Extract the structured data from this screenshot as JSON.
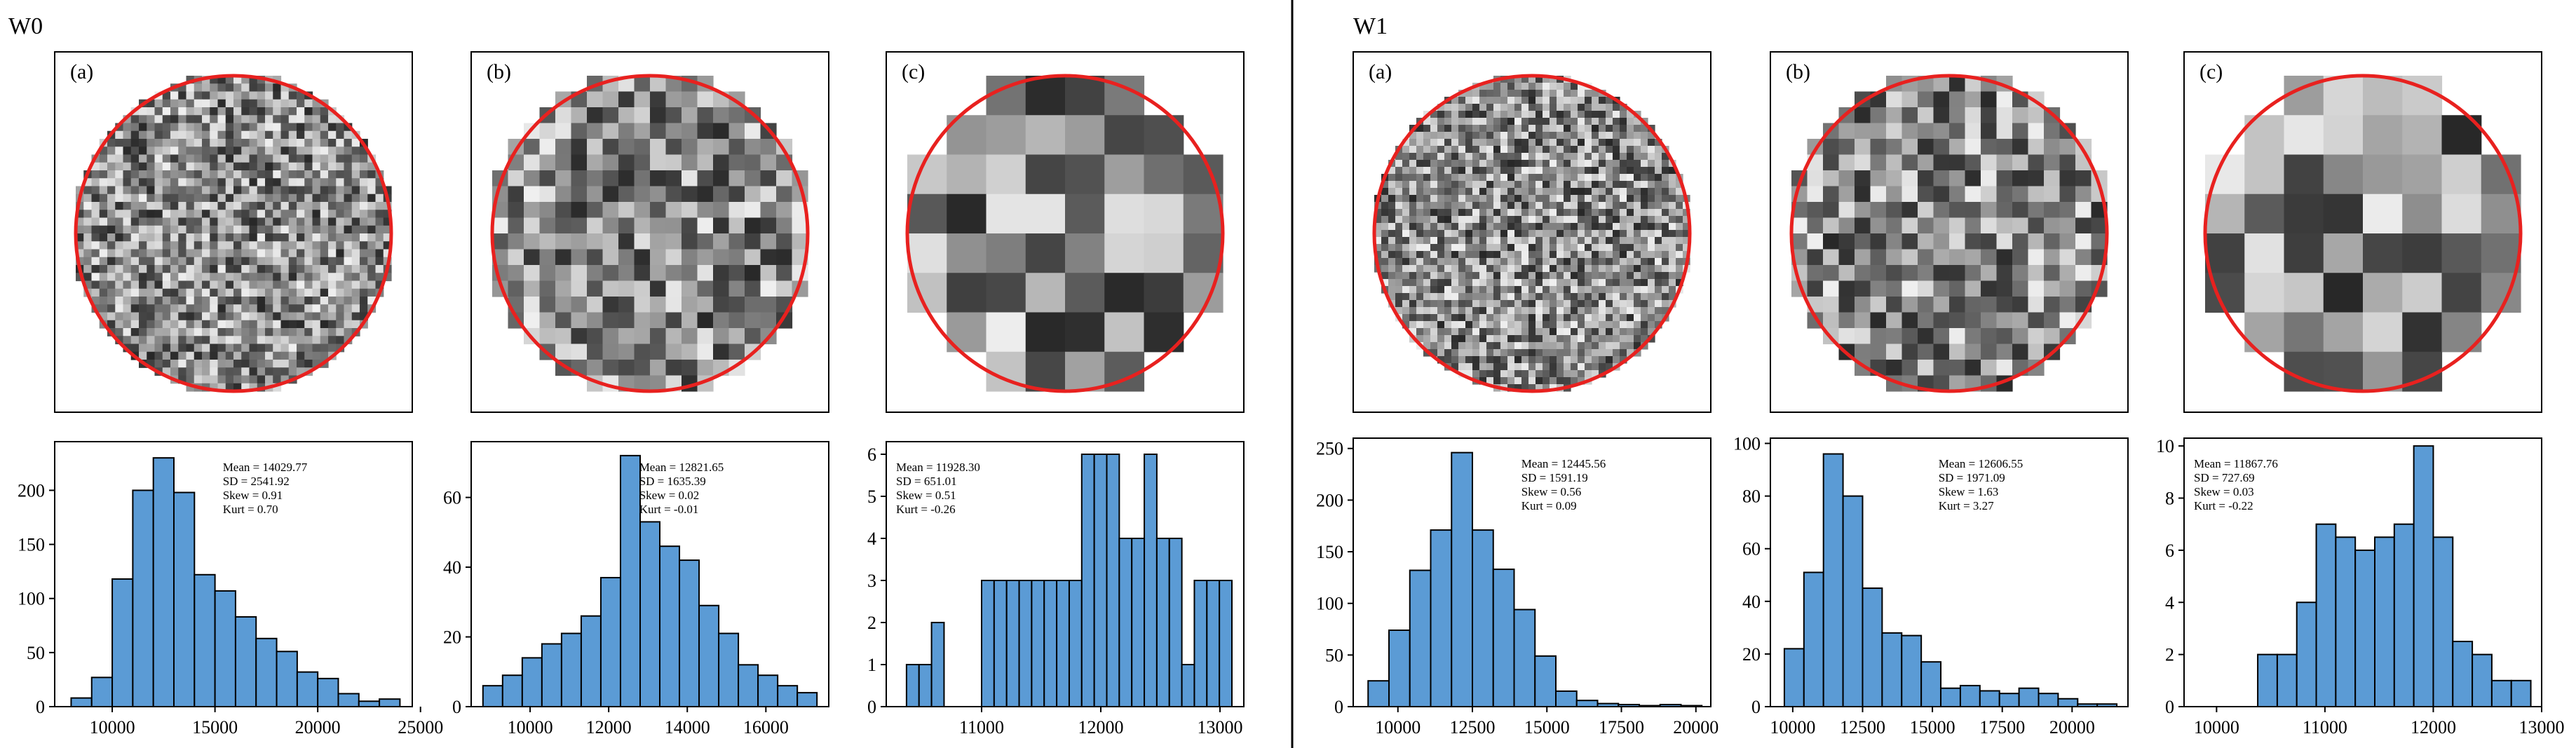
{
  "sections": [
    {
      "title": "W0"
    },
    {
      "title": "W1"
    }
  ],
  "image_labels": [
    "(a)",
    "(b)",
    "(c)"
  ],
  "colors": {
    "bar_fill": "#5b9bd5",
    "bar_edge": "#000000",
    "circle": "#e8211f",
    "divider": "#000000"
  },
  "chart_data": [
    {
      "type": "bar",
      "section": "W0",
      "panel": "a",
      "bin_edges": [
        8000,
        9000,
        10000,
        11000,
        12000,
        13000,
        14000,
        15000,
        16000,
        17000,
        18000,
        19000,
        20000,
        21000,
        22000,
        23000,
        24000
      ],
      "values": [
        8,
        27,
        118,
        200,
        230,
        198,
        122,
        107,
        83,
        63,
        51,
        32,
        26,
        12,
        5,
        7
      ],
      "xlim": [
        7200,
        24600
      ],
      "ylim": [
        0,
        245
      ],
      "xticks": [
        10000,
        15000,
        20000,
        25000
      ],
      "xticklabels": [
        "10000",
        "15000",
        "20000",
        "25000"
      ],
      "yticks": [
        0,
        50,
        100,
        150,
        200
      ],
      "stats": [
        "Mean = 14029.77",
        "SD = 2541.92",
        "Skew = 0.91",
        "Kurt = 0.70"
      ],
      "stats_pos": "top-right"
    },
    {
      "type": "bar",
      "section": "W0",
      "panel": "b",
      "bin_edges": [
        8800,
        9300,
        9800,
        10300,
        10800,
        11300,
        11800,
        12300,
        12800,
        13300,
        13800,
        14300,
        14800,
        15300,
        15800,
        16300,
        16800,
        17300
      ],
      "values": [
        6,
        9,
        14,
        18,
        21,
        26,
        37,
        72,
        53,
        46,
        42,
        29,
        21,
        12,
        9,
        6,
        4
      ],
      "xlim": [
        8500,
        17600
      ],
      "ylim": [
        0,
        76
      ],
      "xticks": [
        10000,
        12000,
        14000,
        16000
      ],
      "xticklabels": [
        "10000",
        "12000",
        "14000",
        "16000"
      ],
      "yticks": [
        0,
        20,
        40,
        60
      ],
      "stats": [
        "Mean = 12821.65",
        "SD = 1635.39",
        "Skew = 0.02",
        "Kurt = -0.01"
      ],
      "stats_pos": "top-right"
    },
    {
      "type": "bar",
      "section": "W0",
      "panel": "c",
      "bin_edges": [
        10370,
        10475,
        10580,
        10685,
        10790,
        10895,
        11000,
        11105,
        11210,
        11315,
        11420,
        11525,
        11630,
        11735,
        11840,
        11945,
        12050,
        12155,
        12260,
        12365,
        12470,
        12575,
        12680,
        12785,
        12890,
        12995,
        13100
      ],
      "values": [
        1,
        1,
        2,
        0,
        0,
        0,
        3,
        3,
        3,
        3,
        3,
        3,
        3,
        3,
        6,
        6,
        6,
        4,
        4,
        6,
        4,
        4,
        1,
        3,
        3,
        3
      ],
      "xlim": [
        10200,
        13200
      ],
      "ylim": [
        0,
        6.3
      ],
      "xticks": [
        11000,
        12000,
        13000
      ],
      "xticklabels": [
        "11000",
        "12000",
        "13000"
      ],
      "yticks": [
        0,
        1,
        2,
        3,
        4,
        5,
        6
      ],
      "stats": [
        "Mean = 11928.30",
        "SD = 651.01",
        "Skew = 0.51",
        "Kurt = -0.26"
      ],
      "stats_pos": "top-left"
    },
    {
      "type": "bar",
      "section": "W1",
      "panel": "a",
      "bin_edges": [
        9000,
        9700,
        10400,
        11100,
        11800,
        12500,
        13200,
        13900,
        14600,
        15300,
        16000,
        16700,
        17400,
        18100,
        18800,
        19500,
        20200
      ],
      "values": [
        25,
        74,
        132,
        171,
        246,
        171,
        133,
        94,
        49,
        15,
        6,
        3,
        2,
        1,
        2,
        1
      ],
      "xlim": [
        8500,
        20500
      ],
      "ylim": [
        0,
        260
      ],
      "xticks": [
        10000,
        12500,
        15000,
        17500,
        20000
      ],
      "xticklabels": [
        "10000",
        "12500",
        "15000",
        "17500",
        "20000"
      ],
      "yticks": [
        0,
        50,
        100,
        150,
        200,
        250
      ],
      "stats": [
        "Mean = 12445.56",
        "SD = 1591.19",
        "Skew = 0.56",
        "Kurt = 0.09"
      ],
      "stats_pos": "top-right"
    },
    {
      "type": "bar",
      "section": "W1",
      "panel": "b",
      "bin_edges": [
        9700,
        10400,
        11100,
        11800,
        12500,
        13200,
        13900,
        14600,
        15300,
        16000,
        16700,
        17400,
        18100,
        18800,
        19500,
        20200,
        20900,
        21600
      ],
      "values": [
        22,
        51,
        96,
        80,
        45,
        28,
        27,
        17,
        7,
        8,
        6,
        5,
        7,
        5,
        3,
        1,
        1
      ],
      "xlim": [
        9200,
        22000
      ],
      "ylim": [
        0,
        102
      ],
      "xticks": [
        10000,
        12500,
        15000,
        17500,
        20000
      ],
      "xticklabels": [
        "10000",
        "12500",
        "15000",
        "17500",
        "20000"
      ],
      "yticks": [
        0,
        20,
        40,
        60,
        80,
        100
      ],
      "stats": [
        "Mean = 12606.55",
        "SD = 1971.09",
        "Skew = 1.63",
        "Kurt = 3.27"
      ],
      "stats_pos": "top-right"
    },
    {
      "type": "bar",
      "section": "W1",
      "panel": "c",
      "bin_edges": [
        10020,
        10200,
        10380,
        10560,
        10740,
        10920,
        11100,
        11280,
        11460,
        11640,
        11820,
        12000,
        12180,
        12360,
        12540,
        12720,
        12900
      ],
      "values": [
        0,
        0,
        2,
        2,
        4,
        7,
        6.5,
        6,
        6.5,
        7,
        10,
        6.5,
        2.5,
        2,
        1,
        1
      ],
      "xlim": [
        9700,
        13000
      ],
      "ylim": [
        0,
        10.3
      ],
      "xticks": [
        10000,
        11000,
        12000,
        13000
      ],
      "xticklabels": [
        "10000",
        "11000",
        "12000",
        "13000"
      ],
      "yticks": [
        0,
        2,
        4,
        6,
        8,
        10
      ],
      "stats": [
        "Mean = 11867.76",
        "SD = 727.69",
        "Skew = 0.03",
        "Kurt = -0.22"
      ],
      "stats_pos": "top-left"
    }
  ]
}
